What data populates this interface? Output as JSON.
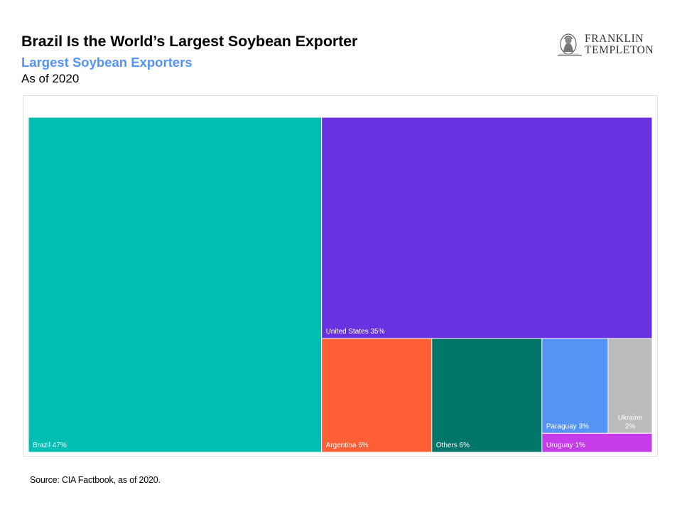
{
  "header": {
    "title": "Brazil Is the World’s Largest Soybean Exporter",
    "subtitle": "Largest Soybean Exporters",
    "as_of": "As of 2020"
  },
  "logo": {
    "line1": "FRANKLIN",
    "line2": "TEMPLETON",
    "icon": "portrait-medallion-icon"
  },
  "chart_data": {
    "type": "treemap",
    "unit": "%",
    "title": "",
    "items": [
      {
        "name": "Brazil",
        "value": 47,
        "label": "Brazil 47%",
        "color": "#00bfb2"
      },
      {
        "name": "United States",
        "value": 35,
        "label": "United States 35%",
        "color": "#6a31e0"
      },
      {
        "name": "Argentina",
        "value": 6,
        "label": "Argentina 6%",
        "color": "#ff5f35"
      },
      {
        "name": "Others",
        "value": 6,
        "label": "Others 6%",
        "color": "#00756a"
      },
      {
        "name": "Paraguay",
        "value": 3,
        "label": "Paraguay 3%",
        "color": "#5593f5"
      },
      {
        "name": "Ukraine",
        "value": 2,
        "label": "Ukraine\n2%",
        "color": "#bbbbbb"
      },
      {
        "name": "Uruguay",
        "value": 1,
        "label": "Uruguay 1%",
        "color": "#c63ce8"
      }
    ]
  },
  "footer": {
    "source": "Source: CIA Factbook, as of 2020."
  }
}
